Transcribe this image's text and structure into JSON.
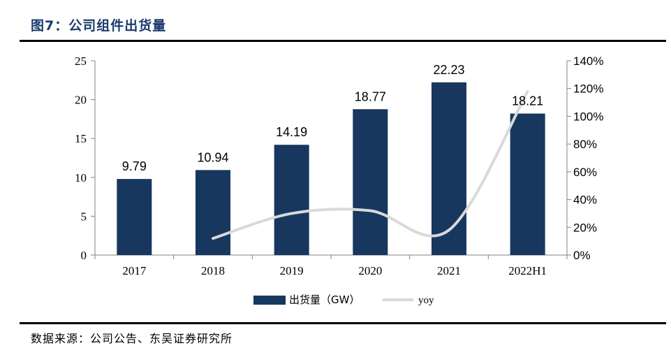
{
  "header": {
    "title": "图7：公司组件出货量"
  },
  "footer": {
    "source": "数据来源：公司公告、东吴证券研究所"
  },
  "colors": {
    "bar": "#17375e",
    "line": "#d9d9d9",
    "axis": "#808080"
  },
  "chart_data": {
    "type": "bar",
    "categories": [
      "2017",
      "2018",
      "2019",
      "2020",
      "2021",
      "2022H1"
    ],
    "series": [
      {
        "name": "出货量（GW）",
        "type": "bar",
        "axis": "left",
        "values": [
          9.79,
          10.94,
          14.19,
          18.77,
          22.23,
          18.21
        ],
        "labels": [
          "9.79",
          "10.94",
          "14.19",
          "18.77",
          "22.23",
          "18.21"
        ]
      },
      {
        "name": "yoy",
        "type": "line",
        "axis": "right",
        "values": [
          null,
          0.12,
          0.3,
          0.32,
          0.18,
          1.18
        ]
      }
    ],
    "yleft": {
      "lim": [
        0,
        25
      ],
      "ticks": [
        0,
        5,
        10,
        15,
        20,
        25
      ]
    },
    "yright": {
      "lim": [
        0,
        1.4
      ],
      "ticks": [
        "0%",
        "20%",
        "40%",
        "60%",
        "80%",
        "100%",
        "120%",
        "140%"
      ]
    },
    "legend": {
      "position": "bottom",
      "bar_label": "出货量（GW）",
      "line_label": "yoy"
    },
    "grid": false
  }
}
